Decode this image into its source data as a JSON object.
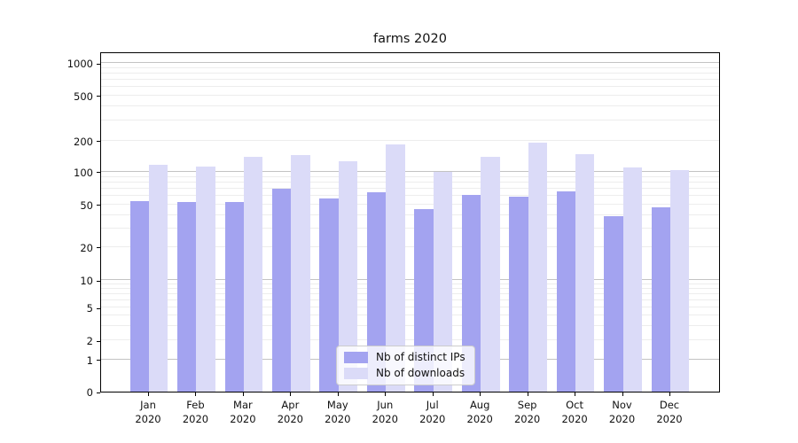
{
  "chart_data": {
    "type": "bar",
    "title": "farms 2020",
    "categories": [
      "Jan",
      "Feb",
      "Mar",
      "Apr",
      "May",
      "Jun",
      "Jul",
      "Aug",
      "Sep",
      "Oct",
      "Nov",
      "Dec"
    ],
    "category_year": "2020",
    "series": [
      {
        "name": "Nb of distinct IPs",
        "color": "#a3a3f0",
        "values": [
          54,
          53,
          53,
          70,
          57,
          65,
          45,
          61,
          59,
          66,
          39,
          47
        ]
      },
      {
        "name": "Nb of downloads",
        "color": "#dbdbf8",
        "values": [
          118,
          112,
          139,
          145,
          126,
          186,
          100,
          141,
          193,
          148,
          110,
          104
        ]
      }
    ],
    "yscale": "symlog",
    "yticks": [
      0,
      1,
      2,
      5,
      10,
      20,
      50,
      100,
      200,
      500,
      1000
    ],
    "ytick_labels": [
      "0",
      "1",
      "2",
      "5",
      "10",
      "20",
      "50",
      "100",
      "200",
      "500",
      "1000"
    ],
    "ylim": [
      0,
      1300
    ],
    "grid": "horizontal major and minor log gridlines",
    "major_grid_values": [
      1,
      10,
      100,
      1000
    ],
    "minor_grid_values": [
      2,
      3,
      4,
      5,
      6,
      7,
      8,
      9,
      20,
      30,
      40,
      50,
      60,
      70,
      80,
      90,
      200,
      300,
      400,
      500,
      600,
      700,
      800,
      900
    ],
    "legend_position": "lower center",
    "colors": {
      "major_grid": "#c3c3c3",
      "minor_grid": "#ededed",
      "axis": "#000000",
      "text": "#111111"
    },
    "y_anchor_fractions": [
      [
        0,
        0.0
      ],
      [
        1,
        0.094
      ],
      [
        2,
        0.151
      ],
      [
        5,
        0.247
      ],
      [
        10,
        0.328
      ],
      [
        20,
        0.425
      ],
      [
        50,
        0.55
      ],
      [
        100,
        0.646
      ],
      [
        200,
        0.737
      ],
      [
        500,
        0.87
      ],
      [
        1000,
        0.966
      ]
    ]
  }
}
